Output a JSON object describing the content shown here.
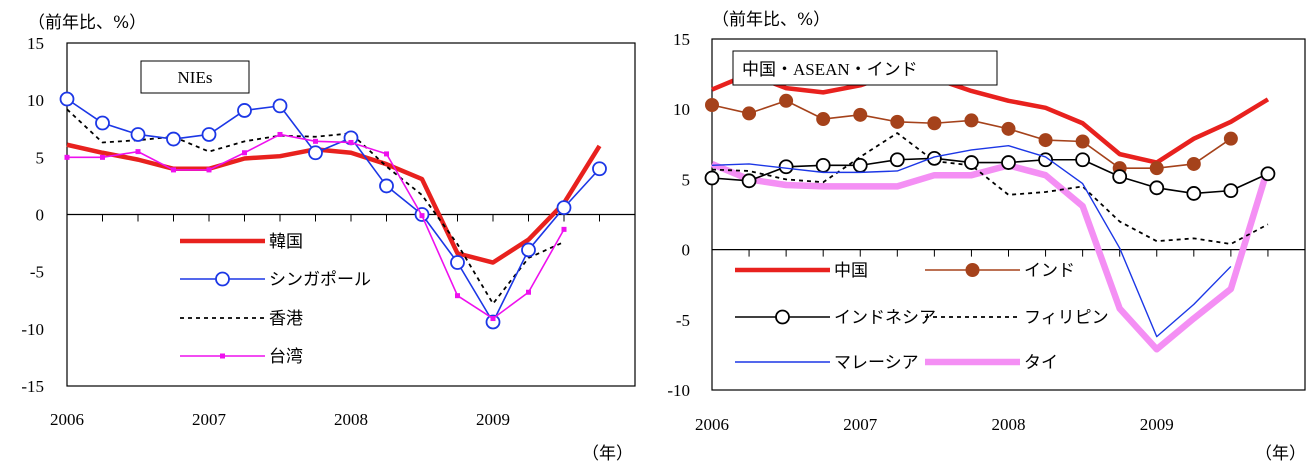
{
  "chart_data": [
    {
      "type": "line",
      "title": "NIEs",
      "unit_label": "（前年比、%）",
      "year_label": "（年）",
      "ylim": [
        -15,
        15
      ],
      "yticks": [
        15,
        10,
        5,
        0,
        -5,
        -10,
        -15
      ],
      "xlim": [
        0,
        16
      ],
      "year_ticks": [
        {
          "label": "2006",
          "q": 0
        },
        {
          "label": "2007",
          "q": 4
        },
        {
          "label": "2008",
          "q": 8
        },
        {
          "label": "2009",
          "q": 12
        }
      ],
      "legend_position": "lower-left",
      "series": [
        {
          "name": "韓国",
          "color": "#e8211e",
          "width": 4.5,
          "dash": "",
          "marker": "none",
          "values": [
            6.1,
            5.4,
            4.8,
            4.0,
            4.0,
            4.9,
            5.1,
            5.7,
            5.4,
            4.4,
            3.1,
            -3.4,
            -4.2,
            -2.2,
            1.0,
            6.0
          ]
        },
        {
          "name": "シンガポール",
          "color": "#1c37e6",
          "width": 1.6,
          "dash": "",
          "marker": "circle",
          "values": [
            10.1,
            8.0,
            7.0,
            6.6,
            7.0,
            9.1,
            9.5,
            5.4,
            6.7,
            2.5,
            0.0,
            -4.2,
            -9.4,
            -3.1,
            0.6,
            4.0
          ]
        },
        {
          "name": "香港",
          "color": "#000000",
          "width": 1.8,
          "dash": "4,4",
          "marker": "none",
          "values": [
            9.2,
            6.3,
            6.5,
            6.8,
            5.5,
            6.4,
            6.9,
            6.8,
            7.1,
            4.2,
            1.7,
            -2.6,
            -7.8,
            -3.8,
            -2.4,
            null
          ]
        },
        {
          "name": "台湾",
          "color": "#ee10ee",
          "width": 1.6,
          "dash": "",
          "marker": "square",
          "values": [
            5.0,
            5.0,
            5.5,
            3.9,
            3.9,
            5.4,
            7.0,
            6.4,
            6.3,
            5.3,
            -0.1,
            -7.1,
            -9.1,
            -6.8,
            -1.3,
            null
          ]
        }
      ]
    },
    {
      "type": "line",
      "title": "中国・ASEAN・インド",
      "unit_label": "（前年比、%）",
      "year_label": "（年）",
      "ylim": [
        -10,
        15
      ],
      "yticks": [
        15,
        10,
        5,
        0,
        -5,
        -10
      ],
      "xlim": [
        0,
        16
      ],
      "year_ticks": [
        {
          "label": "2006",
          "q": 0
        },
        {
          "label": "2007",
          "q": 4
        },
        {
          "label": "2008",
          "q": 8
        },
        {
          "label": "2009",
          "q": 12
        }
      ],
      "legend_position": "lower-left",
      "series": [
        {
          "name": "中国",
          "color": "#e8211e",
          "width": 4.5,
          "dash": "",
          "marker": "none",
          "values": [
            11.4,
            12.5,
            11.5,
            11.2,
            11.7,
            12.6,
            12.2,
            11.3,
            10.6,
            10.1,
            9.0,
            6.8,
            6.2,
            7.9,
            9.1,
            10.7
          ]
        },
        {
          "name": "インド",
          "color": "#a5421b",
          "width": 1.6,
          "dash": "",
          "marker": "dot",
          "values": [
            10.3,
            9.7,
            10.6,
            9.3,
            9.6,
            9.1,
            9.0,
            9.2,
            8.6,
            7.8,
            7.7,
            5.8,
            5.8,
            6.1,
            7.9,
            null
          ]
        },
        {
          "name": "インドネシア",
          "color": "#000000",
          "width": 1.6,
          "dash": "",
          "marker": "circle",
          "values": [
            5.1,
            4.9,
            5.9,
            6.0,
            6.0,
            6.4,
            6.5,
            6.2,
            6.2,
            6.4,
            6.4,
            5.2,
            4.4,
            4.0,
            4.2,
            5.4
          ]
        },
        {
          "name": "フィリピン",
          "color": "#000000",
          "width": 1.8,
          "dash": "4,4",
          "marker": "none",
          "values": [
            5.7,
            5.6,
            5.0,
            4.8,
            6.6,
            8.3,
            6.3,
            6.0,
            3.9,
            4.1,
            4.5,
            2.0,
            0.6,
            0.8,
            0.4,
            1.8
          ]
        },
        {
          "name": "マレーシア",
          "color": "#1c37e6",
          "width": 1.4,
          "dash": "",
          "marker": "none",
          "values": [
            6.0,
            6.1,
            5.8,
            5.5,
            5.5,
            5.6,
            6.6,
            7.1,
            7.4,
            6.6,
            4.7,
            0.1,
            -6.2,
            -3.9,
            -1.2,
            null
          ]
        },
        {
          "name": "タイ",
          "color": "#f48ff4",
          "width": 6.5,
          "dash": "",
          "marker": "none",
          "values": [
            6.1,
            5.0,
            4.6,
            4.5,
            4.5,
            4.5,
            5.3,
            5.3,
            6.0,
            5.3,
            3.1,
            -4.2,
            -7.1,
            -4.9,
            -2.8,
            5.8
          ]
        }
      ]
    }
  ]
}
